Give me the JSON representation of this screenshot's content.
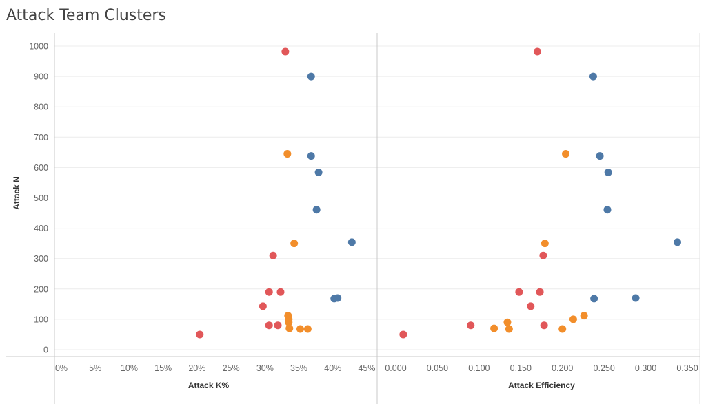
{
  "title": "Attack Team Clusters",
  "colors": {
    "cluster_1": "#4e79a7",
    "cluster_2": "#f28e2b",
    "cluster_3": "#e15759",
    "grid": "#ececec",
    "axis": "#c8c8c8"
  },
  "chart_data": [
    {
      "type": "scatter",
      "panel": "left",
      "xlabel": "Attack K%",
      "ylabel": "Attack N",
      "xlim": [
        0,
        0.45
      ],
      "ylim": [
        0,
        1000
      ],
      "x_ticks": [
        {
          "value": 0,
          "label": "0%"
        },
        {
          "value": 0.05,
          "label": "5%"
        },
        {
          "value": 0.1,
          "label": "10%"
        },
        {
          "value": 0.15,
          "label": "15%"
        },
        {
          "value": 0.2,
          "label": "20%"
        },
        {
          "value": 0.25,
          "label": "25%"
        },
        {
          "value": 0.3,
          "label": "30%"
        },
        {
          "value": 0.35,
          "label": "35%"
        },
        {
          "value": 0.4,
          "label": "40%"
        },
        {
          "value": 0.45,
          "label": "45%"
        }
      ],
      "y_ticks": [
        {
          "value": 0,
          "label": "0"
        },
        {
          "value": 100,
          "label": "100"
        },
        {
          "value": 200,
          "label": "200"
        },
        {
          "value": 300,
          "label": "300"
        },
        {
          "value": 400,
          "label": "400"
        },
        {
          "value": 500,
          "label": "500"
        },
        {
          "value": 600,
          "label": "600"
        },
        {
          "value": 700,
          "label": "700"
        },
        {
          "value": 800,
          "label": "800"
        },
        {
          "value": 900,
          "label": "900"
        },
        {
          "value": 1000,
          "label": "1000"
        }
      ],
      "grid": true,
      "series": [
        {
          "color": "#4e79a7",
          "points": [
            {
              "x": 0.368,
              "y": 900
            },
            {
              "x": 0.368,
              "y": 638
            },
            {
              "x": 0.379,
              "y": 584
            },
            {
              "x": 0.376,
              "y": 461
            },
            {
              "x": 0.428,
              "y": 354
            },
            {
              "x": 0.402,
              "y": 168
            },
            {
              "x": 0.407,
              "y": 170
            }
          ]
        },
        {
          "color": "#f28e2b",
          "points": [
            {
              "x": 0.333,
              "y": 645
            },
            {
              "x": 0.343,
              "y": 350
            },
            {
              "x": 0.334,
              "y": 112
            },
            {
              "x": 0.335,
              "y": 100
            },
            {
              "x": 0.335,
              "y": 90
            },
            {
              "x": 0.336,
              "y": 70
            },
            {
              "x": 0.352,
              "y": 68
            },
            {
              "x": 0.363,
              "y": 68
            }
          ]
        },
        {
          "color": "#e15759",
          "points": [
            {
              "x": 0.33,
              "y": 982
            },
            {
              "x": 0.312,
              "y": 310
            },
            {
              "x": 0.306,
              "y": 190
            },
            {
              "x": 0.323,
              "y": 190
            },
            {
              "x": 0.297,
              "y": 143
            },
            {
              "x": 0.306,
              "y": 80
            },
            {
              "x": 0.319,
              "y": 80
            },
            {
              "x": 0.204,
              "y": 50
            }
          ]
        }
      ]
    },
    {
      "type": "scatter",
      "panel": "right",
      "xlabel": "Attack Efficiency",
      "ylabel": "",
      "xlim": [
        0,
        0.35
      ],
      "ylim": [
        0,
        1000
      ],
      "x_ticks": [
        {
          "value": 0,
          "label": "0.000"
        },
        {
          "value": 0.05,
          "label": "0.050"
        },
        {
          "value": 0.1,
          "label": "0.100"
        },
        {
          "value": 0.15,
          "label": "0.150"
        },
        {
          "value": 0.2,
          "label": "0.200"
        },
        {
          "value": 0.25,
          "label": "0.250"
        },
        {
          "value": 0.3,
          "label": "0.300"
        },
        {
          "value": 0.35,
          "label": "0.350"
        }
      ],
      "grid": true,
      "series": [
        {
          "color": "#4e79a7",
          "points": [
            {
              "x": 0.237,
              "y": 900
            },
            {
              "x": 0.245,
              "y": 638
            },
            {
              "x": 0.255,
              "y": 584
            },
            {
              "x": 0.254,
              "y": 461
            },
            {
              "x": 0.338,
              "y": 354
            },
            {
              "x": 0.238,
              "y": 168
            },
            {
              "x": 0.288,
              "y": 170
            }
          ]
        },
        {
          "color": "#f28e2b",
          "points": [
            {
              "x": 0.204,
              "y": 645
            },
            {
              "x": 0.179,
              "y": 350
            },
            {
              "x": 0.226,
              "y": 112
            },
            {
              "x": 0.213,
              "y": 100
            },
            {
              "x": 0.134,
              "y": 90
            },
            {
              "x": 0.136,
              "y": 68
            },
            {
              "x": 0.118,
              "y": 70
            },
            {
              "x": 0.2,
              "y": 68
            }
          ]
        },
        {
          "color": "#e15759",
          "points": [
            {
              "x": 0.17,
              "y": 982
            },
            {
              "x": 0.177,
              "y": 310
            },
            {
              "x": 0.148,
              "y": 190
            },
            {
              "x": 0.173,
              "y": 190
            },
            {
              "x": 0.162,
              "y": 143
            },
            {
              "x": 0.09,
              "y": 80
            },
            {
              "x": 0.178,
              "y": 80
            },
            {
              "x": 0.009,
              "y": 50
            }
          ]
        }
      ]
    }
  ]
}
